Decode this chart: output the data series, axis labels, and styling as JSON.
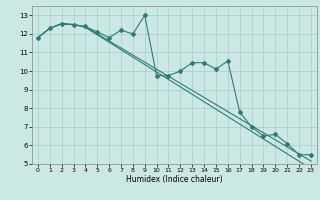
{
  "title": "",
  "xlabel": "Humidex (Indice chaleur)",
  "bg_color": "#cce8e4",
  "line_color": "#2e7d6e",
  "grid_color": "#aaccc8",
  "xlim": [
    -0.5,
    23.5
  ],
  "ylim": [
    5,
    13.5
  ],
  "yticks": [
    5,
    6,
    7,
    8,
    9,
    10,
    11,
    12,
    13
  ],
  "xticks": [
    0,
    1,
    2,
    3,
    4,
    5,
    6,
    7,
    8,
    9,
    10,
    11,
    12,
    13,
    14,
    15,
    16,
    17,
    18,
    19,
    20,
    21,
    22,
    23
  ],
  "main_x": [
    0,
    1,
    2,
    3,
    4,
    5,
    6,
    7,
    8,
    9,
    10,
    11,
    12,
    13,
    14,
    15,
    16,
    17,
    18,
    19,
    20,
    21,
    22,
    23
  ],
  "main_y": [
    11.8,
    12.3,
    12.55,
    12.5,
    12.4,
    12.1,
    11.8,
    12.2,
    12.0,
    13.0,
    9.75,
    9.75,
    10.0,
    10.45,
    10.45,
    10.1,
    10.55,
    7.8,
    7.0,
    6.5,
    6.6,
    6.1,
    5.5,
    5.5
  ],
  "line2_y": [
    11.8,
    12.3,
    12.55,
    12.5,
    12.35,
    11.95,
    11.55,
    11.15,
    10.75,
    10.35,
    9.95,
    9.55,
    9.15,
    8.75,
    8.35,
    7.95,
    7.55,
    7.15,
    6.75,
    6.35,
    5.95,
    5.55,
    5.15,
    4.75
  ],
  "line3_y": [
    11.8,
    12.3,
    12.55,
    12.5,
    12.38,
    12.0,
    11.62,
    11.24,
    10.86,
    10.48,
    10.1,
    9.72,
    9.34,
    8.96,
    8.58,
    8.2,
    7.82,
    7.44,
    7.06,
    6.68,
    6.3,
    5.92,
    5.54,
    5.16
  ]
}
